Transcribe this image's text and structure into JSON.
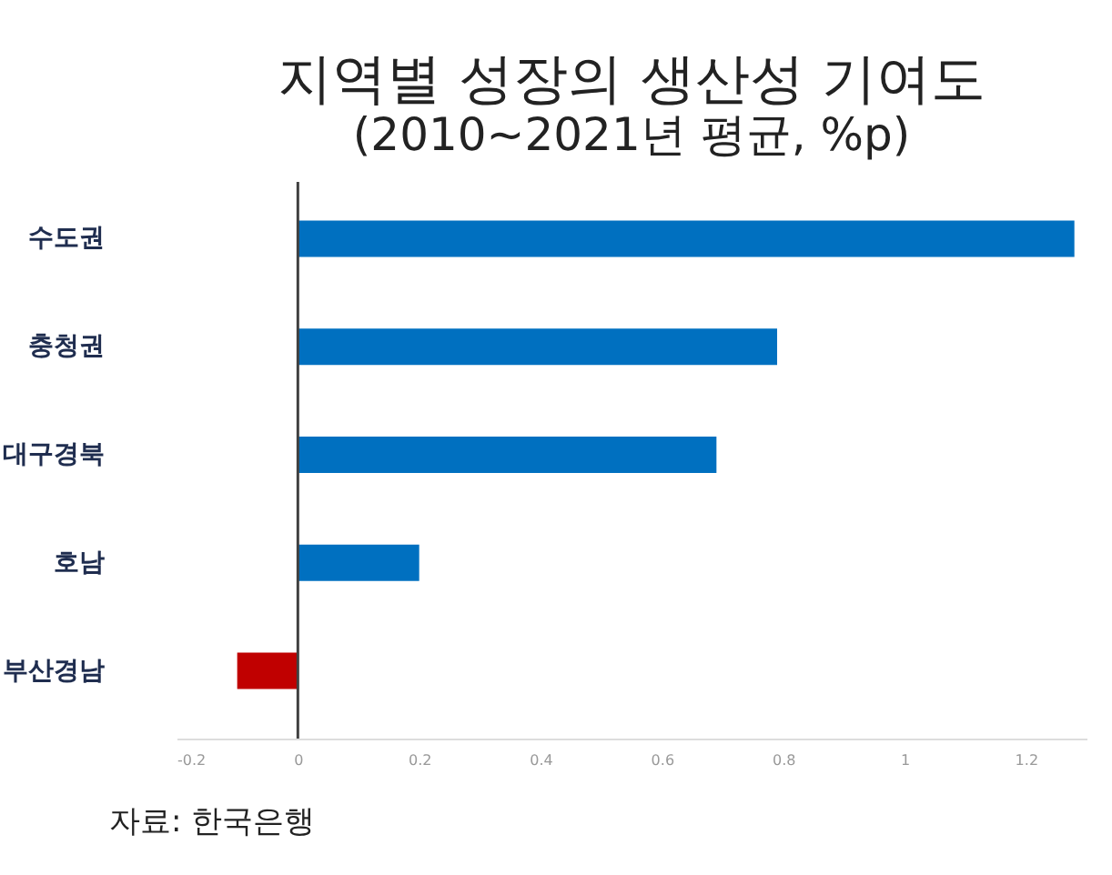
{
  "chart_data": {
    "type": "bar",
    "orientation": "horizontal",
    "title": "지역별 성장의 생산성 기여도",
    "subtitle": "(2010~2021년 평균, %p)",
    "categories": [
      "수도권",
      "충청권",
      "대구경북",
      "호남",
      "부산경남"
    ],
    "values": [
      1.28,
      0.79,
      0.69,
      0.2,
      -0.1
    ],
    "colors": [
      "#0070c0",
      "#0070c0",
      "#0070c0",
      "#0070c0",
      "#c00000"
    ],
    "xlim": [
      -0.2,
      1.3
    ],
    "xticks": [
      -0.2,
      0,
      0.2,
      0.4,
      0.6,
      0.8,
      1,
      1.2
    ],
    "ref_lines": [
      {
        "axis": "x",
        "value": 0,
        "color": "#404040"
      }
    ],
    "grid": false,
    "annotations": [
      "자료: 한국은행"
    ]
  }
}
